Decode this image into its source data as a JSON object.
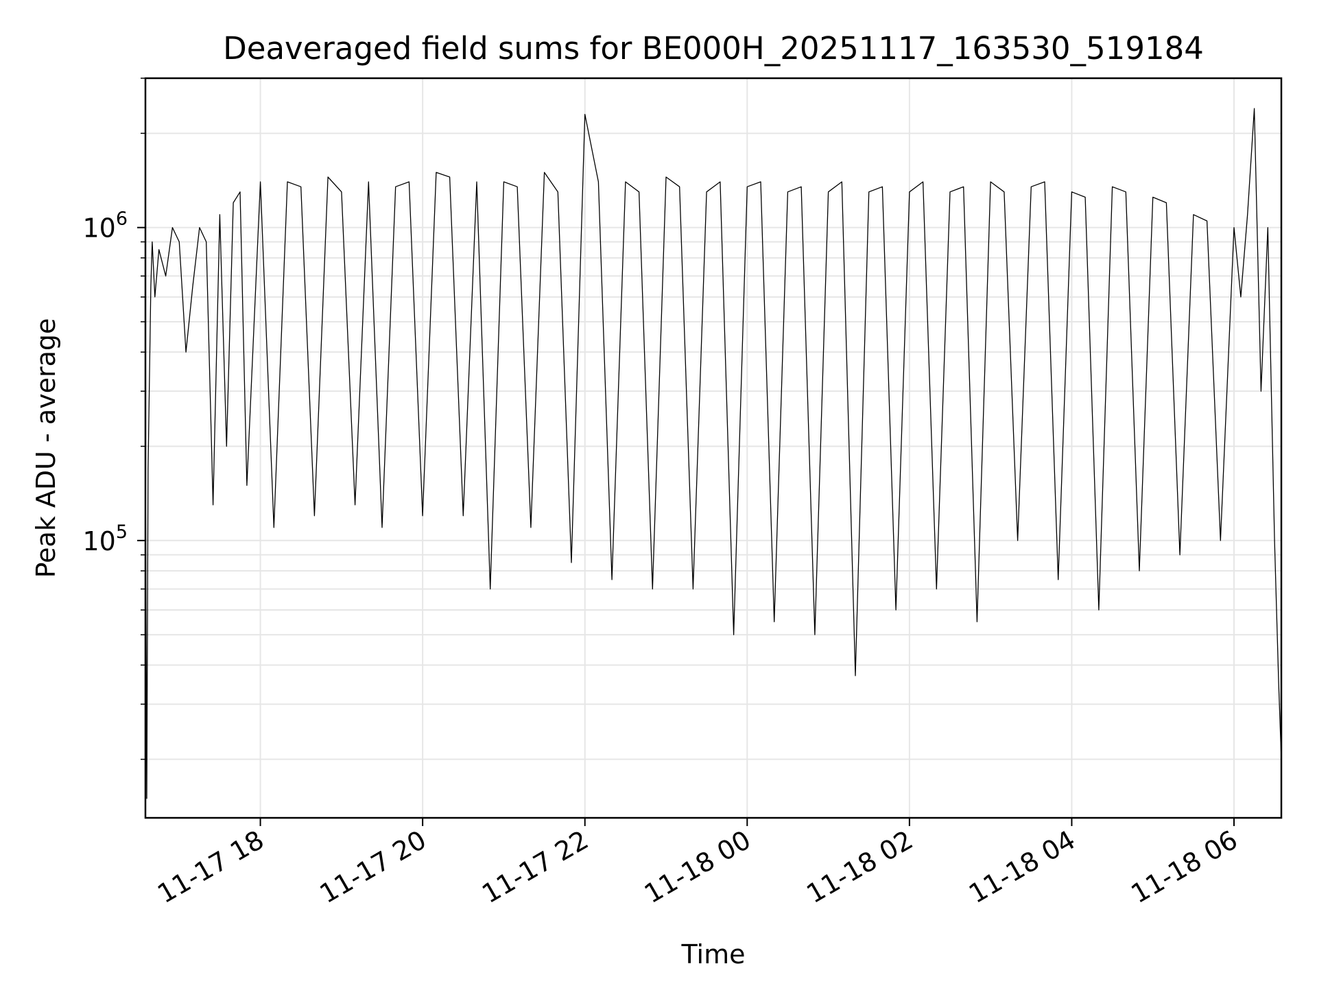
{
  "chart_data": {
    "type": "line",
    "title": "Deaveraged field sums for BE000H_20251117_163530_519184",
    "xlabel": "Time",
    "ylabel": "Peak ADU - average",
    "x_range": [
      "2025-11-17 16:35",
      "2025-11-18 06:35"
    ],
    "y_range": [
      13000,
      3000000
    ],
    "yscale": "log",
    "grid": true,
    "legend": "none",
    "x_ticks": [
      {
        "value": "2025-11-17 18:00",
        "label": "11-17 18"
      },
      {
        "value": "2025-11-17 20:00",
        "label": "11-17 20"
      },
      {
        "value": "2025-11-17 22:00",
        "label": "11-17 22"
      },
      {
        "value": "2025-11-18 00:00",
        "label": "11-18 00"
      },
      {
        "value": "2025-11-18 02:00",
        "label": "11-18 02"
      },
      {
        "value": "2025-11-18 04:00",
        "label": "11-18 04"
      },
      {
        "value": "2025-11-18 06:00",
        "label": "11-18 06"
      }
    ],
    "y_ticks": [
      {
        "value": 100000,
        "base": "10",
        "exp": "5"
      },
      {
        "value": 1000000,
        "base": "10",
        "exp": "6"
      }
    ],
    "series": [
      {
        "color": "#000000",
        "x": [
          "2025-11-17 16:35",
          "2025-11-17 16:36",
          "2025-11-17 16:37",
          "2025-11-17 16:39",
          "2025-11-17 16:40",
          "2025-11-17 16:42",
          "2025-11-17 16:45",
          "2025-11-17 16:50",
          "2025-11-17 16:55",
          "2025-11-17 17:00",
          "2025-11-17 17:05",
          "2025-11-17 17:10",
          "2025-11-17 17:15",
          "2025-11-17 17:20",
          "2025-11-17 17:25",
          "2025-11-17 17:30",
          "2025-11-17 17:35",
          "2025-11-17 17:40",
          "2025-11-17 17:45",
          "2025-11-17 17:50",
          "2025-11-17 18:00",
          "2025-11-17 18:10",
          "2025-11-17 18:20",
          "2025-11-17 18:30",
          "2025-11-17 18:40",
          "2025-11-17 18:50",
          "2025-11-17 19:00",
          "2025-11-17 19:10",
          "2025-11-17 19:20",
          "2025-11-17 19:30",
          "2025-11-17 19:40",
          "2025-11-17 19:50",
          "2025-11-17 20:00",
          "2025-11-17 20:10",
          "2025-11-17 20:20",
          "2025-11-17 20:30",
          "2025-11-17 20:40",
          "2025-11-17 20:50",
          "2025-11-17 21:00",
          "2025-11-17 21:10",
          "2025-11-17 21:20",
          "2025-11-17 21:30",
          "2025-11-17 21:40",
          "2025-11-17 21:50",
          "2025-11-17 22:00",
          "2025-11-17 22:10",
          "2025-11-17 22:20",
          "2025-11-17 22:30",
          "2025-11-17 22:40",
          "2025-11-17 22:50",
          "2025-11-17 23:00",
          "2025-11-17 23:10",
          "2025-11-17 23:20",
          "2025-11-17 23:30",
          "2025-11-17 23:40",
          "2025-11-17 23:50",
          "2025-11-18 00:00",
          "2025-11-18 00:10",
          "2025-11-18 00:20",
          "2025-11-18 00:30",
          "2025-11-18 00:40",
          "2025-11-18 00:50",
          "2025-11-18 01:00",
          "2025-11-18 01:10",
          "2025-11-18 01:20",
          "2025-11-18 01:30",
          "2025-11-18 01:40",
          "2025-11-18 01:50",
          "2025-11-18 02:00",
          "2025-11-18 02:10",
          "2025-11-18 02:20",
          "2025-11-18 02:30",
          "2025-11-18 02:40",
          "2025-11-18 02:50",
          "2025-11-18 03:00",
          "2025-11-18 03:10",
          "2025-11-18 03:20",
          "2025-11-18 03:30",
          "2025-11-18 03:40",
          "2025-11-18 03:50",
          "2025-11-18 04:00",
          "2025-11-18 04:10",
          "2025-11-18 04:20",
          "2025-11-18 04:30",
          "2025-11-18 04:40",
          "2025-11-18 04:50",
          "2025-11-18 05:00",
          "2025-11-18 05:10",
          "2025-11-18 05:20",
          "2025-11-18 05:30",
          "2025-11-18 05:40",
          "2025-11-18 05:50",
          "2025-11-18 06:00",
          "2025-11-18 06:05",
          "2025-11-18 06:10",
          "2025-11-18 06:15",
          "2025-11-18 06:20",
          "2025-11-18 06:25",
          "2025-11-18 06:30",
          "2025-11-18 06:33",
          "2025-11-18 06:35"
        ],
        "y": [
          200000,
          15000,
          170000,
          650000,
          900000,
          600000,
          850000,
          700000,
          1000000,
          900000,
          400000,
          650000,
          1000000,
          900000,
          130000,
          1100000,
          200000,
          1200000,
          1300000,
          150000,
          1400000,
          110000,
          1400000,
          1350000,
          120000,
          1450000,
          1300000,
          130000,
          1400000,
          110000,
          1350000,
          1400000,
          120000,
          1500000,
          1450000,
          120000,
          1400000,
          70000,
          1400000,
          1350000,
          110000,
          1500000,
          1300000,
          85000,
          2300000,
          1400000,
          75000,
          1400000,
          1300000,
          70000,
          1450000,
          1350000,
          70000,
          1300000,
          1400000,
          50000,
          1350000,
          1400000,
          55000,
          1300000,
          1350000,
          50000,
          1300000,
          1400000,
          37000,
          1300000,
          1350000,
          60000,
          1300000,
          1400000,
          70000,
          1300000,
          1350000,
          55000,
          1400000,
          1300000,
          100000,
          1350000,
          1400000,
          75000,
          1300000,
          1250000,
          60000,
          1350000,
          1300000,
          80000,
          1250000,
          1200000,
          90000,
          1100000,
          1050000,
          100000,
          1000000,
          600000,
          1100000,
          2400000,
          300000,
          1000000,
          100000,
          35000,
          20000
        ]
      }
    ]
  }
}
